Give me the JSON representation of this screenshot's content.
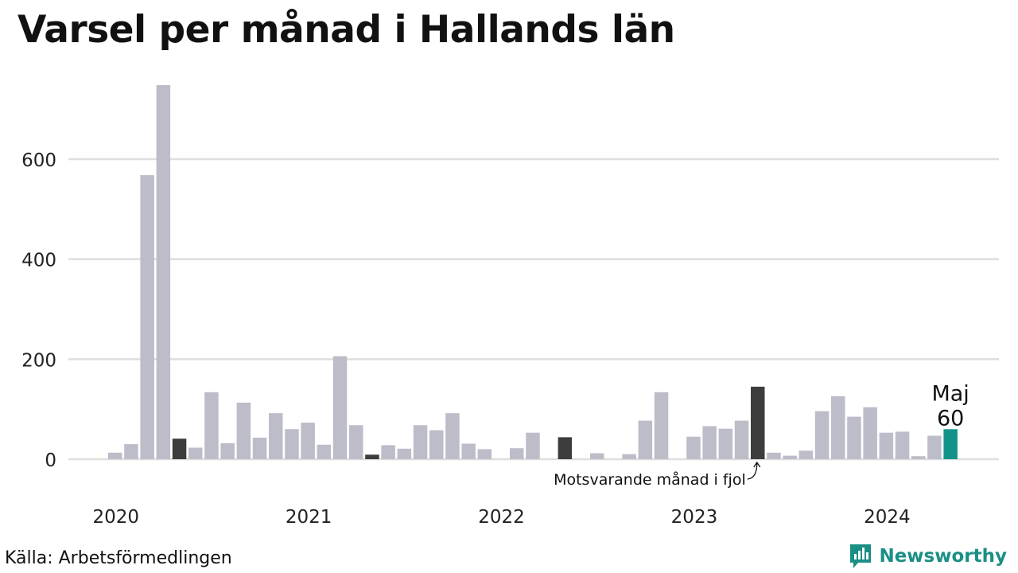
{
  "title": "Varsel per månad i Hallands län",
  "source": "Källa: Arbetsförmedlingen",
  "brand": {
    "name": "Newsworthy",
    "icon": "newsworthy-logo-icon"
  },
  "colors": {
    "default_bar": "#bdbcc9",
    "same_month_bar": "#3d3d3d",
    "current_bar": "#12938a",
    "grid": "#dedede",
    "brand": "#1a8f86"
  },
  "annotations": {
    "current_month": "Maj",
    "current_value": "60",
    "same_month_note": "Motsvarande månad i fjol"
  },
  "chart_data": {
    "type": "bar",
    "title": "Varsel per månad i Hallands län",
    "xlabel": "",
    "ylabel": "",
    "ylim": [
      0,
      760
    ],
    "yticks": [
      0,
      200,
      400,
      600
    ],
    "xtick_labels": [
      "2020",
      "2021",
      "2022",
      "2023",
      "2024"
    ],
    "grid": true,
    "categories": [
      "2020-01",
      "2020-02",
      "2020-03",
      "2020-04",
      "2020-05",
      "2020-06",
      "2020-07",
      "2020-08",
      "2020-09",
      "2020-10",
      "2020-11",
      "2020-12",
      "2021-01",
      "2021-02",
      "2021-03",
      "2021-04",
      "2021-05",
      "2021-06",
      "2021-07",
      "2021-08",
      "2021-09",
      "2021-10",
      "2021-11",
      "2021-12",
      "2022-01",
      "2022-02",
      "2022-03",
      "2022-04",
      "2022-05",
      "2022-06",
      "2022-07",
      "2022-08",
      "2022-09",
      "2022-10",
      "2022-11",
      "2022-12",
      "2023-01",
      "2023-02",
      "2023-03",
      "2023-04",
      "2023-05",
      "2023-06",
      "2023-07",
      "2023-08",
      "2023-09",
      "2023-10",
      "2023-11",
      "2023-12",
      "2024-01",
      "2024-02",
      "2024-03",
      "2024-04",
      "2024-05"
    ],
    "values": [
      13,
      30,
      568,
      748,
      41,
      23,
      134,
      32,
      113,
      43,
      92,
      60,
      73,
      29,
      206,
      68,
      9,
      28,
      21,
      68,
      58,
      92,
      31,
      20,
      0,
      22,
      53,
      0,
      44,
      0,
      12,
      0,
      10,
      77,
      134,
      0,
      45,
      66,
      61,
      77,
      145,
      13,
      7,
      17,
      96,
      126,
      85,
      104,
      53,
      55,
      6,
      47,
      60
    ],
    "highlight_same_month": [
      "2020-05",
      "2021-05",
      "2022-05",
      "2023-05"
    ],
    "highlight_current": "2024-05"
  }
}
